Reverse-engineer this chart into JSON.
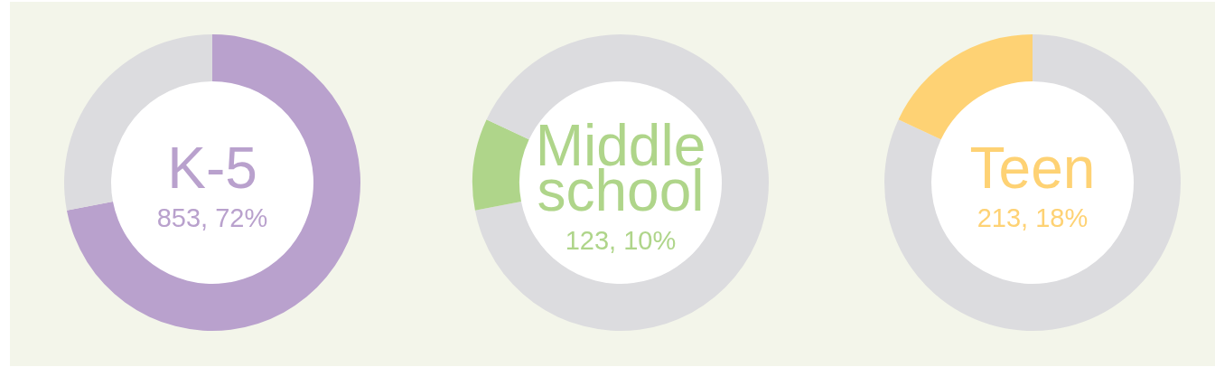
{
  "chart_data": [
    {
      "type": "donut",
      "title": "K-5",
      "annotations": [
        "853, 72%"
      ],
      "categories": [
        null,
        null
      ],
      "values": [
        72,
        28
      ],
      "colors": [
        "#b9a1cd",
        "#dcdcdf"
      ]
    },
    {
      "type": "donut",
      "title": "Middle school",
      "annotations": [
        "123, 10%"
      ],
      "categories": [
        null,
        null,
        null
      ],
      "values": [
        72,
        10,
        18
      ],
      "colors": [
        "#dcdcdf",
        "#afd58a",
        "#dcdcdf"
      ]
    },
    {
      "type": "donut",
      "title": "Teen",
      "annotations": [
        "213, 18%"
      ],
      "categories": [
        null,
        null
      ],
      "values": [
        82,
        18
      ],
      "colors": [
        "#dcdcdf",
        "#fed274"
      ]
    }
  ]
}
